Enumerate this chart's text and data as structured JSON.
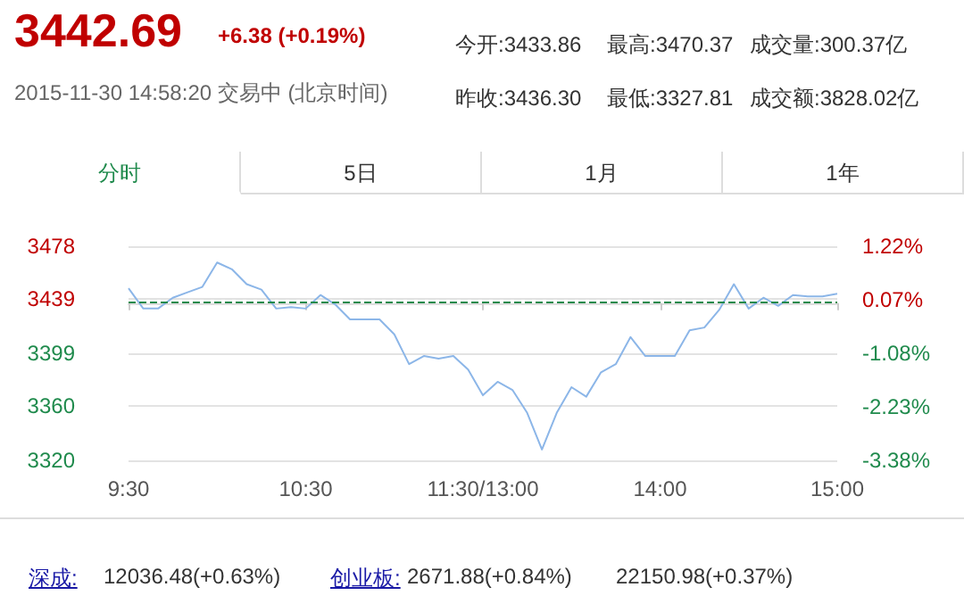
{
  "chart_data": {
    "type": "line",
    "title": "3442.69",
    "annotations": [
      "+6.38 (+0.19%)",
      "2015-11-30 14:58:20 交易中 (北京时间)",
      "今开:3433.86",
      "最高:3470.37",
      "成交量:300.37亿",
      "昨收:3436.30",
      "最低:3327.81",
      "成交额:3828.02亿",
      "分时",
      "5日",
      "1月",
      "1年",
      "深成:",
      "12036.48(+0.63%)",
      "创业板:",
      "2671.88(+0.84%)",
      "22150.98(+0.37%)"
    ],
    "categories": [
      "9:30",
      null,
      null,
      null,
      null,
      null,
      null,
      null,
      null,
      null,
      null,
      null,
      "10:30",
      null,
      null,
      null,
      null,
      null,
      null,
      null,
      null,
      null,
      null,
      null,
      "11:30/13:00",
      null,
      null,
      null,
      null,
      null,
      null,
      null,
      null,
      null,
      null,
      null,
      "14:00",
      null,
      null,
      null,
      null,
      null,
      null,
      null,
      null,
      null,
      null,
      null,
      "15:00"
    ],
    "series": [
      {
        "color": "#8cb6e8",
        "values": [
          3447,
          3432,
          3432,
          3440,
          3444,
          3448,
          3466,
          3461,
          3450,
          3446,
          3432,
          3433,
          3432,
          3442,
          3435,
          3424,
          3424,
          3424,
          3413,
          3391,
          3397,
          3395,
          3397,
          3387,
          3368,
          3378,
          3372,
          3355,
          3328,
          3355,
          3374,
          3367,
          3385,
          3391,
          3411,
          3397,
          3397,
          3397,
          3416,
          3418,
          3431,
          3450,
          3432,
          3440,
          3434,
          3442,
          3441,
          3441,
          3443
        ]
      }
    ],
    "ylim": [
      3320,
      3478
    ],
    "yticks": [
      3320,
      3360,
      3399,
      3439,
      3478
    ],
    "y2lim": [
      -3.38,
      1.22
    ],
    "y2ticks": [
      {
        "value": -3.38,
        "label": "-3.38%"
      },
      {
        "value": -2.23,
        "label": "-2.23%"
      },
      {
        "value": -1.08,
        "label": "-1.08%"
      },
      {
        "value": 0.07,
        "label": "0.07%"
      },
      {
        "value": 1.22,
        "label": "1.22%"
      }
    ],
    "ref_lines": [
      {
        "axis": "y",
        "value": 3436.3,
        "label": null,
        "color": "#1f8a4c",
        "line_style": "dashed"
      }
    ],
    "grid": "y",
    "marker": "none",
    "line_style": "solid"
  }
}
